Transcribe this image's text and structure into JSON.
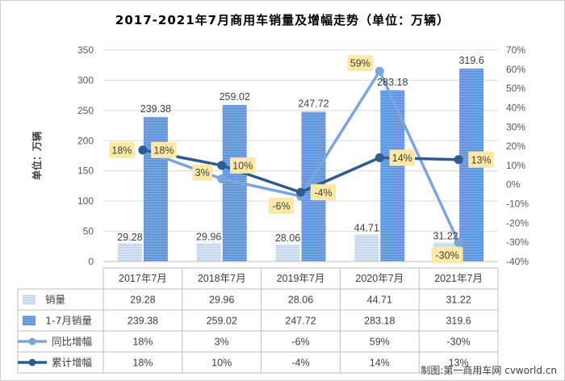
{
  "chart_data": {
    "type": "bar",
    "title": "2017-2021年7月商用车销量及增幅走势（单位：万辆）",
    "ylabel": "单位：万辆",
    "ylim": [
      0,
      350
    ],
    "y_ticks": [
      "0",
      "50",
      "100",
      "150",
      "200",
      "250",
      "300",
      "350"
    ],
    "y2lim": [
      -40,
      70
    ],
    "y2_ticks": [
      "-40%",
      "-30%",
      "-20%",
      "-10%",
      "0%",
      "10%",
      "20%",
      "30%",
      "40%",
      "50%",
      "60%",
      "70%"
    ],
    "categories": [
      "2017年7月",
      "2018年7月",
      "2019年7月",
      "2020年7月",
      "2021年7月"
    ],
    "series": [
      {
        "name": "销量",
        "kind": "bar",
        "axis": "left",
        "values": [
          29.28,
          29.96,
          28.06,
          44.71,
          31.22
        ],
        "labels": [
          "29.28",
          "29.96",
          "28.06",
          "44.71",
          "31.22"
        ],
        "color": "#c5d5ee"
      },
      {
        "name": "1-7月销量",
        "kind": "bar",
        "axis": "left",
        "values": [
          239.38,
          259.02,
          247.72,
          283.18,
          319.6
        ],
        "labels": [
          "239.38",
          "259.02",
          "247.72",
          "283.18",
          "319.6"
        ],
        "color": "#5b8fd1"
      },
      {
        "name": "同比增幅",
        "kind": "line",
        "axis": "right",
        "values": [
          18,
          3,
          -6,
          59,
          -30
        ],
        "labels": [
          "18%",
          "3%",
          "-6%",
          "59%",
          "-30%"
        ],
        "color": "#7aa6dc"
      },
      {
        "name": "累计增幅",
        "kind": "line",
        "axis": "right",
        "values": [
          18,
          10,
          -4,
          14,
          13
        ],
        "labels": [
          "18%",
          "10%",
          "-4%",
          "14%",
          "13%"
        ],
        "color": "#2e5c8e"
      }
    ],
    "grid": true,
    "legend": "data table below chart"
  },
  "credit": "制图:第一商用车网 cvworld.cn",
  "colors": {
    "label_bg": "#fde9a6",
    "grid": "#d9d9d9"
  }
}
